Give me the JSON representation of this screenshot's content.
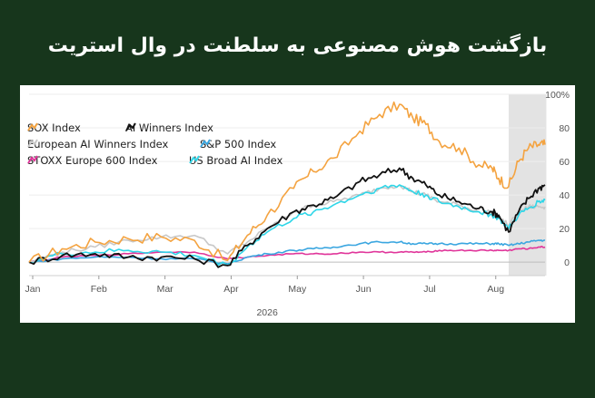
{
  "page": {
    "title": "بازگشت هوش مصنوعی به سلطنت در وال استریت"
  },
  "chart_data": {
    "type": "line",
    "title": "",
    "xlabel": "2026",
    "x_ticks": [
      "Jan",
      "Feb",
      "Mar",
      "Apr",
      "May",
      "Jun",
      "Jul",
      "Aug"
    ],
    "y_ticks": [
      "0",
      "20",
      "40",
      "60",
      "80",
      "100%"
    ],
    "y_tick_values": [
      0,
      20,
      40,
      60,
      80,
      100
    ],
    "ylim": [
      -8,
      100
    ],
    "xlim": [
      0,
      7.8
    ],
    "shaded_range": [
      7.25,
      7.82
    ],
    "series": [
      {
        "name": "SOX Index",
        "color": "#f4a340",
        "x": [
          0,
          0.5,
          1,
          1.5,
          2,
          2.5,
          3,
          3.3,
          3.6,
          4,
          4.3,
          4.6,
          5,
          5.3,
          5.6,
          5.8,
          6,
          6.2,
          6.5,
          6.8,
          7,
          7.1,
          7.25,
          7.4,
          7.55,
          7.7,
          7.8
        ],
        "y": [
          0,
          8,
          12,
          14,
          15,
          13,
          1,
          16,
          28,
          44,
          54,
          62,
          78,
          88,
          94,
          86,
          82,
          72,
          68,
          58,
          56,
          50,
          45,
          60,
          68,
          70,
          70
        ]
      },
      {
        "name": "AI Winners Index",
        "color": "#111111",
        "x": [
          0,
          0.5,
          1,
          1.5,
          2,
          2.5,
          3,
          3.3,
          3.6,
          4,
          4.3,
          4.6,
          5,
          5.3,
          5.6,
          5.8,
          6,
          6.2,
          6.5,
          6.8,
          7,
          7.1,
          7.25,
          7.4,
          7.55,
          7.7,
          7.8
        ],
        "y": [
          0,
          4,
          5,
          3,
          3,
          2,
          -2,
          10,
          20,
          30,
          34,
          38,
          48,
          52,
          56,
          50,
          46,
          40,
          36,
          32,
          30,
          28,
          18,
          30,
          38,
          44,
          46
        ]
      },
      {
        "name": "European AI Winners Index",
        "color": "#c8c8c8",
        "x": [
          0,
          0.5,
          1,
          1.5,
          2,
          2.5,
          3,
          3.3,
          3.6,
          4,
          4.3,
          4.6,
          5,
          5.3,
          5.6,
          5.8,
          6,
          6.2,
          6.5,
          6.8,
          7,
          7.1,
          7.25,
          7.4,
          7.55,
          7.7,
          7.8
        ],
        "y": [
          0,
          6,
          9,
          13,
          15,
          16,
          5,
          12,
          20,
          30,
          34,
          36,
          40,
          44,
          46,
          42,
          40,
          36,
          34,
          30,
          30,
          27,
          22,
          30,
          33,
          33,
          33
        ]
      },
      {
        "name": "S&P 500 Index",
        "color": "#3aa6e0",
        "x": [
          0,
          0.5,
          1,
          1.5,
          2,
          2.5,
          3,
          3.3,
          3.6,
          4,
          4.3,
          4.6,
          5,
          5.3,
          5.6,
          5.8,
          6,
          6.2,
          6.5,
          6.8,
          7,
          7.1,
          7.25,
          7.4,
          7.55,
          7.7,
          7.8
        ],
        "y": [
          0,
          2,
          3,
          3,
          2,
          2,
          -1,
          3,
          5,
          7,
          8,
          9,
          11,
          12,
          12,
          11,
          11,
          11,
          11,
          11,
          11,
          11,
          10,
          11,
          12,
          13,
          13
        ]
      },
      {
        "name": "STOXX Europe 600 Index",
        "color": "#e0359a",
        "x": [
          0,
          0.5,
          1,
          1.5,
          2,
          2.5,
          3,
          3.3,
          3.6,
          4,
          4.3,
          4.6,
          5,
          5.3,
          5.6,
          5.8,
          6,
          6.2,
          6.5,
          6.8,
          7,
          7.1,
          7.25,
          7.4,
          7.55,
          7.7,
          7.8
        ],
        "y": [
          0,
          3,
          4,
          5,
          6,
          6,
          2,
          3,
          4,
          5,
          5,
          5,
          6,
          6,
          6,
          6,
          6,
          7,
          7,
          7,
          7,
          7,
          7,
          8,
          8,
          9,
          9
        ]
      },
      {
        "name": "US Broad AI Index",
        "color": "#2fd6e8",
        "x": [
          0,
          0.5,
          1,
          1.5,
          2,
          2.5,
          3,
          3.3,
          3.6,
          4,
          4.3,
          4.6,
          5,
          5.3,
          5.6,
          5.8,
          6,
          6.2,
          6.5,
          6.8,
          7,
          7.1,
          7.25,
          7.4,
          7.55,
          7.7,
          7.8
        ],
        "y": [
          0,
          5,
          6,
          7,
          6,
          4,
          -2,
          9,
          18,
          26,
          30,
          34,
          40,
          44,
          46,
          42,
          40,
          36,
          33,
          30,
          28,
          26,
          20,
          28,
          32,
          36,
          37
        ]
      }
    ]
  }
}
